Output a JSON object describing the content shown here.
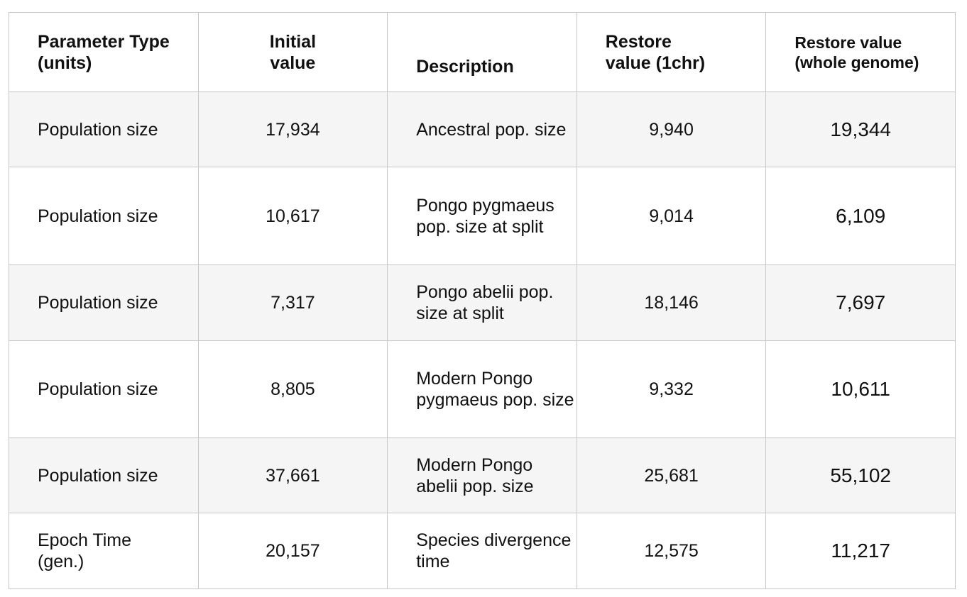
{
  "table": {
    "headers": [
      {
        "line1": "Parameter Type",
        "line2": "(units)"
      },
      {
        "line1": "Initial",
        "line2": "value"
      },
      {
        "line1": "Description"
      },
      {
        "line1": "Restore",
        "line2": "value (1chr)"
      },
      {
        "line1": "Restore value",
        "line2": "(whole genome)"
      }
    ],
    "rows": [
      {
        "parameter_type": {
          "line1": "Population size"
        },
        "initial_value": "17,934",
        "description": {
          "line1": "Ancestral pop. size"
        },
        "restore_1chr": "9,940",
        "restore_whole_genome": "19,344"
      },
      {
        "parameter_type": {
          "line1": "Population size"
        },
        "initial_value": "10,617",
        "description": {
          "line1": "Pongo pygmaeus",
          "line2": "pop. size at split"
        },
        "restore_1chr": "9,014",
        "restore_whole_genome": "6,109"
      },
      {
        "parameter_type": {
          "line1": "Population size"
        },
        "initial_value": "7,317",
        "description": {
          "line1": "Pongo abelii pop.",
          "line2": "size at split"
        },
        "restore_1chr": "18,146",
        "restore_whole_genome": "7,697"
      },
      {
        "parameter_type": {
          "line1": "Population size"
        },
        "initial_value": "8,805",
        "description": {
          "line1": "Modern Pongo",
          "line2": "pygmaeus pop. size"
        },
        "restore_1chr": "9,332",
        "restore_whole_genome": "10,611"
      },
      {
        "parameter_type": {
          "line1": "Population size"
        },
        "initial_value": "37,661",
        "description": {
          "line1": "Modern Pongo",
          "line2": "abelii pop. size"
        },
        "restore_1chr": "25,681",
        "restore_whole_genome": "55,102"
      },
      {
        "parameter_type": {
          "line1": "Epoch Time",
          "line2": "(gen.)"
        },
        "initial_value": "20,157",
        "description": {
          "line1": "Species divergence",
          "line2": "time"
        },
        "restore_1chr": "12,575",
        "restore_whole_genome": "11,217"
      }
    ]
  }
}
